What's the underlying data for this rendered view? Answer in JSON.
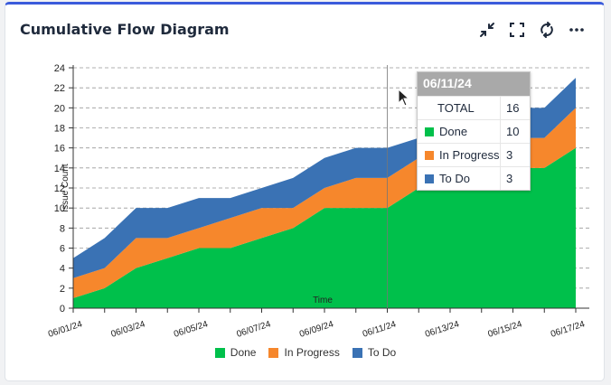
{
  "header": {
    "title": "Cumulative Flow Diagram",
    "actions": [
      "collapse-icon",
      "fullscreen-icon",
      "refresh-icon",
      "more-icon"
    ]
  },
  "colors": {
    "done": "#00c04b",
    "in_progress": "#f6872c",
    "to_do": "#3a72b4",
    "border_top": "#3b5bdb"
  },
  "chart_data": {
    "type": "area",
    "stacked": true,
    "title": "Cumulative Flow Diagram",
    "xlabel": "Time",
    "ylabel": "Issue Count",
    "ylim": [
      0,
      24
    ],
    "yticks": [
      0,
      2,
      4,
      6,
      8,
      10,
      12,
      14,
      16,
      18,
      20,
      22,
      24
    ],
    "x": [
      "06/01/24",
      "06/02/24",
      "06/03/24",
      "06/04/24",
      "06/05/24",
      "06/06/24",
      "06/07/24",
      "06/08/24",
      "06/09/24",
      "06/10/24",
      "06/11/24",
      "06/12/24",
      "06/13/24",
      "06/14/24",
      "06/15/24",
      "06/16/24",
      "06/17/24"
    ],
    "xtick_labels": [
      "06/01/24",
      "06/03/24",
      "06/05/24",
      "06/07/24",
      "06/09/24",
      "06/11/24",
      "06/13/24",
      "06/15/24",
      "06/17/24"
    ],
    "series": [
      {
        "name": "Done",
        "color": "#00c04b",
        "values": [
          1,
          2,
          4,
          5,
          6,
          6,
          7,
          8,
          10,
          10,
          10,
          12,
          12,
          13,
          14,
          14,
          16
        ]
      },
      {
        "name": "In Progress",
        "color": "#f6872c",
        "values": [
          2,
          2,
          3,
          2,
          2,
          3,
          3,
          2,
          2,
          3,
          3,
          3,
          3,
          3,
          3,
          3,
          4
        ]
      },
      {
        "name": "To Do",
        "color": "#3a72b4",
        "values": [
          2,
          3,
          3,
          3,
          3,
          2,
          2,
          3,
          3,
          3,
          3,
          2,
          2,
          3,
          3,
          3,
          3
        ]
      }
    ],
    "legend_position": "bottom-center",
    "hover_index": 10
  },
  "tooltip": {
    "date": "06/11/24",
    "rows": [
      {
        "label": "TOTAL",
        "value": "16"
      },
      {
        "label": "Done",
        "value": "10"
      },
      {
        "label": "In Progress",
        "value": "3"
      },
      {
        "label": "To Do",
        "value": "3"
      }
    ]
  }
}
